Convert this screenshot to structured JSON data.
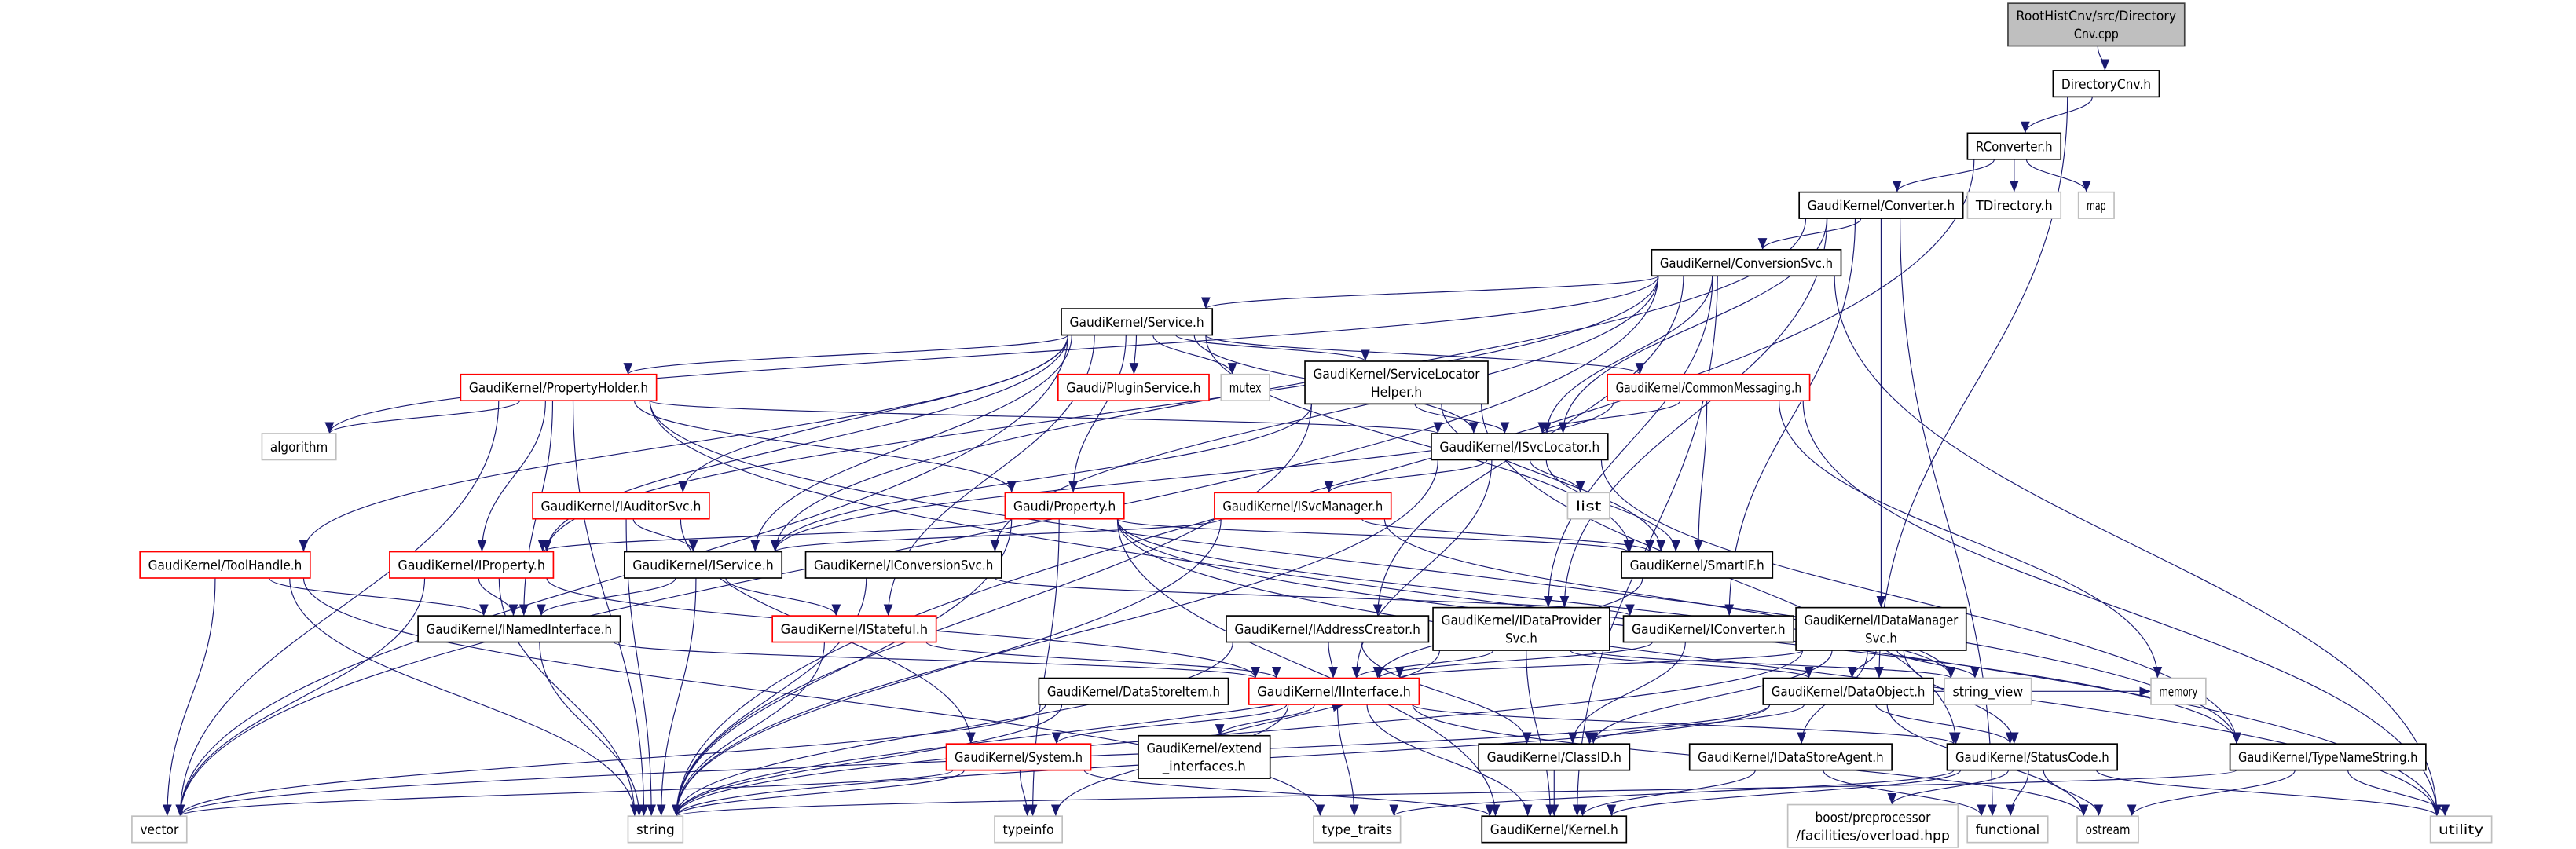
{
  "colors": {
    "edge": "#191970",
    "root_fill": "#bfbfbf",
    "truncated_border": "#ff0000",
    "normal_border": "#000000",
    "external_border": "#bfbfbf"
  },
  "nodes": [
    {
      "id": "root",
      "lines": [
        "RootHistCnv/src/Directory",
        "Cnv.cpp"
      ],
      "kind": "root"
    },
    {
      "id": "dircnv",
      "lines": [
        "DirectoryCnv.h"
      ],
      "kind": "normal"
    },
    {
      "id": "rconv",
      "lines": [
        "RConverter.h"
      ],
      "kind": "normal"
    },
    {
      "id": "converter",
      "lines": [
        "GaudiKernel/Converter.h"
      ],
      "kind": "normal"
    },
    {
      "id": "tdirectory",
      "lines": [
        "TDirectory.h"
      ],
      "kind": "external"
    },
    {
      "id": "map",
      "lines": [
        "map"
      ],
      "kind": "external"
    },
    {
      "id": "convsvc",
      "lines": [
        "GaudiKernel/ConversionSvc.h"
      ],
      "kind": "normal"
    },
    {
      "id": "service",
      "lines": [
        "GaudiKernel/Service.h"
      ],
      "kind": "normal"
    },
    {
      "id": "propholder",
      "lines": [
        "GaudiKernel/PropertyHolder.h"
      ],
      "kind": "truncated"
    },
    {
      "id": "algorithm",
      "lines": [
        "algorithm"
      ],
      "kind": "external"
    },
    {
      "id": "pluginsvc",
      "lines": [
        "Gaudi/PluginService.h"
      ],
      "kind": "truncated"
    },
    {
      "id": "mutex",
      "lines": [
        "mutex"
      ],
      "kind": "external"
    },
    {
      "id": "slhelper",
      "lines": [
        "GaudiKernel/ServiceLocator",
        "Helper.h"
      ],
      "kind": "normal"
    },
    {
      "id": "commonmsg",
      "lines": [
        "GaudiKernel/CommonMessaging.h"
      ],
      "kind": "truncated"
    },
    {
      "id": "isvclocator",
      "lines": [
        "GaudiKernel/ISvcLocator.h"
      ],
      "kind": "normal"
    },
    {
      "id": "list",
      "lines": [
        "list"
      ],
      "kind": "external"
    },
    {
      "id": "iauditorsvc",
      "lines": [
        "GaudiKernel/IAuditorSvc.h"
      ],
      "kind": "truncated"
    },
    {
      "id": "property",
      "lines": [
        "Gaudi/Property.h"
      ],
      "kind": "truncated"
    },
    {
      "id": "isvcmanager",
      "lines": [
        "GaudiKernel/ISvcManager.h"
      ],
      "kind": "truncated"
    },
    {
      "id": "toolhandle",
      "lines": [
        "GaudiKernel/ToolHandle.h"
      ],
      "kind": "truncated"
    },
    {
      "id": "iproperty",
      "lines": [
        "GaudiKernel/IProperty.h"
      ],
      "kind": "truncated"
    },
    {
      "id": "iservice",
      "lines": [
        "GaudiKernel/IService.h"
      ],
      "kind": "normal"
    },
    {
      "id": "iconvsvc",
      "lines": [
        "GaudiKernel/IConversionSvc.h"
      ],
      "kind": "normal"
    },
    {
      "id": "smartif",
      "lines": [
        "GaudiKernel/SmartIF.h"
      ],
      "kind": "normal"
    },
    {
      "id": "inamed",
      "lines": [
        "GaudiKernel/INamedInterface.h"
      ],
      "kind": "normal"
    },
    {
      "id": "istateful",
      "lines": [
        "GaudiKernel/IStateful.h"
      ],
      "kind": "truncated"
    },
    {
      "id": "iaddrcreator",
      "lines": [
        "GaudiKernel/IAddressCreator.h"
      ],
      "kind": "normal"
    },
    {
      "id": "idataprov",
      "lines": [
        "GaudiKernel/IDataProvider",
        "Svc.h"
      ],
      "kind": "normal"
    },
    {
      "id": "iconverter",
      "lines": [
        "GaudiKernel/IConverter.h"
      ],
      "kind": "normal"
    },
    {
      "id": "idatamgr",
      "lines": [
        "GaudiKernel/IDataManager",
        "Svc.h"
      ],
      "kind": "normal"
    },
    {
      "id": "datastoreitem",
      "lines": [
        "GaudiKernel/DataStoreItem.h"
      ],
      "kind": "normal"
    },
    {
      "id": "iinterface",
      "lines": [
        "GaudiKernel/IInterface.h"
      ],
      "kind": "truncated"
    },
    {
      "id": "dataobject",
      "lines": [
        "GaudiKernel/DataObject.h"
      ],
      "kind": "normal"
    },
    {
      "id": "string_view",
      "lines": [
        "string_view"
      ],
      "kind": "external"
    },
    {
      "id": "memory",
      "lines": [
        "memory"
      ],
      "kind": "external"
    },
    {
      "id": "system",
      "lines": [
        "GaudiKernel/System.h"
      ],
      "kind": "truncated"
    },
    {
      "id": "extend",
      "lines": [
        "GaudiKernel/extend",
        "_interfaces.h"
      ],
      "kind": "normal"
    },
    {
      "id": "classid",
      "lines": [
        "GaudiKernel/ClassID.h"
      ],
      "kind": "normal"
    },
    {
      "id": "idatastoreagent",
      "lines": [
        "GaudiKernel/IDataStoreAgent.h"
      ],
      "kind": "normal"
    },
    {
      "id": "statuscode",
      "lines": [
        "GaudiKernel/StatusCode.h"
      ],
      "kind": "normal"
    },
    {
      "id": "typenamestring",
      "lines": [
        "GaudiKernel/TypeNameString.h"
      ],
      "kind": "normal"
    },
    {
      "id": "vector",
      "lines": [
        "vector"
      ],
      "kind": "external"
    },
    {
      "id": "string",
      "lines": [
        "string"
      ],
      "kind": "external"
    },
    {
      "id": "typeinfo",
      "lines": [
        "typeinfo"
      ],
      "kind": "external"
    },
    {
      "id": "type_traits",
      "lines": [
        "type_traits"
      ],
      "kind": "external"
    },
    {
      "id": "kernel",
      "lines": [
        "GaudiKernel/Kernel.h"
      ],
      "kind": "normal"
    },
    {
      "id": "boost",
      "lines": [
        "boost/preprocessor",
        "/facilities/overload.hpp"
      ],
      "kind": "external"
    },
    {
      "id": "functional",
      "lines": [
        "functional"
      ],
      "kind": "external"
    },
    {
      "id": "ostream",
      "lines": [
        "ostream"
      ],
      "kind": "external"
    },
    {
      "id": "utility",
      "lines": [
        "utility"
      ],
      "kind": "external"
    }
  ],
  "edges": [
    [
      "root",
      "dircnv"
    ],
    [
      "dircnv",
      "rconv"
    ],
    [
      "dircnv",
      "dataobject"
    ],
    [
      "rconv",
      "converter"
    ],
    [
      "rconv",
      "tdirectory"
    ],
    [
      "rconv",
      "map"
    ],
    [
      "rconv",
      "string"
    ],
    [
      "converter",
      "convsvc"
    ],
    [
      "converter",
      "iconverter"
    ],
    [
      "converter",
      "isvclocator"
    ],
    [
      "converter",
      "idatamgr"
    ],
    [
      "converter",
      "idataprov"
    ],
    [
      "converter",
      "iservice"
    ],
    [
      "converter",
      "functional"
    ],
    [
      "convsvc",
      "service"
    ],
    [
      "convsvc",
      "iconvsvc"
    ],
    [
      "convsvc",
      "iaddrcreator"
    ],
    [
      "convsvc",
      "idataprov"
    ],
    [
      "convsvc",
      "algorithm"
    ],
    [
      "convsvc",
      "vector"
    ],
    [
      "convsvc",
      "utility"
    ],
    [
      "convsvc",
      "iproperty"
    ],
    [
      "convsvc",
      "isvclocator"
    ],
    [
      "convsvc",
      "kernel"
    ],
    [
      "service",
      "propholder"
    ],
    [
      "service",
      "pluginsvc"
    ],
    [
      "service",
      "mutex"
    ],
    [
      "service",
      "slhelper"
    ],
    [
      "service",
      "commonmsg"
    ],
    [
      "service",
      "isvclocator"
    ],
    [
      "service",
      "property"
    ],
    [
      "service",
      "iauditorsvc"
    ],
    [
      "service",
      "toolhandle"
    ],
    [
      "service",
      "iservice"
    ],
    [
      "service",
      "istateful"
    ],
    [
      "service",
      "smartif"
    ],
    [
      "service",
      "vector"
    ],
    [
      "service",
      "iproperty"
    ],
    [
      "propholder",
      "algorithm"
    ],
    [
      "propholder",
      "iproperty"
    ],
    [
      "propholder",
      "inamed"
    ],
    [
      "propholder",
      "property"
    ],
    [
      "propholder",
      "isvclocator"
    ],
    [
      "propholder",
      "string"
    ],
    [
      "propholder",
      "vector"
    ],
    [
      "propholder",
      "typenamestring"
    ],
    [
      "propholder",
      "utility"
    ],
    [
      "slhelper",
      "isvclocator"
    ],
    [
      "slhelper",
      "smartif"
    ],
    [
      "slhelper",
      "iservice"
    ],
    [
      "slhelper",
      "string"
    ],
    [
      "slhelper",
      "statuscode"
    ],
    [
      "commonmsg",
      "isvclocator"
    ],
    [
      "commonmsg",
      "smartif"
    ],
    [
      "commonmsg",
      "iservice"
    ],
    [
      "commonmsg",
      "memory"
    ],
    [
      "commonmsg",
      "utility"
    ],
    [
      "isvclocator",
      "list"
    ],
    [
      "isvclocator",
      "smartif"
    ],
    [
      "isvclocator",
      "isvcmanager"
    ],
    [
      "isvclocator",
      "iinterface"
    ],
    [
      "isvclocator",
      "string"
    ],
    [
      "isvclocator",
      "typenamestring"
    ],
    [
      "iauditorsvc",
      "iservice"
    ],
    [
      "iauditorsvc",
      "system"
    ],
    [
      "iauditorsvc",
      "string"
    ],
    [
      "property",
      "iproperty"
    ],
    [
      "property",
      "smartif"
    ],
    [
      "property",
      "string"
    ],
    [
      "property",
      "typeinfo"
    ],
    [
      "property",
      "kernel"
    ],
    [
      "property",
      "utility"
    ],
    [
      "property",
      "string_view"
    ],
    [
      "property",
      "typenamestring"
    ],
    [
      "isvcmanager",
      "iservice"
    ],
    [
      "isvcmanager",
      "smartif"
    ],
    [
      "isvcmanager",
      "string"
    ],
    [
      "isvcmanager",
      "string_view"
    ],
    [
      "toolhandle",
      "inamed"
    ],
    [
      "toolhandle",
      "vector"
    ],
    [
      "toolhandle",
      "string"
    ],
    [
      "toolhandle",
      "type_traits"
    ],
    [
      "iproperty",
      "inamed"
    ],
    [
      "iproperty",
      "iinterface"
    ],
    [
      "iproperty",
      "vector"
    ],
    [
      "iproperty",
      "string"
    ],
    [
      "iservice",
      "inamed"
    ],
    [
      "iservice",
      "istateful"
    ],
    [
      "iservice",
      "string"
    ],
    [
      "iconvsvc",
      "iconverter"
    ],
    [
      "iconvsvc",
      "string"
    ],
    [
      "smartif",
      "iinterface"
    ],
    [
      "inamed",
      "iinterface"
    ],
    [
      "inamed",
      "string"
    ],
    [
      "istateful",
      "iinterface"
    ],
    [
      "istateful",
      "string"
    ],
    [
      "iaddrcreator",
      "iinterface"
    ],
    [
      "iaddrcreator",
      "classid"
    ],
    [
      "iaddrcreator",
      "string"
    ],
    [
      "idataprov",
      "iinterface"
    ],
    [
      "idataprov",
      "dataobject"
    ],
    [
      "idataprov",
      "string"
    ],
    [
      "idataprov",
      "string_view"
    ],
    [
      "idataprov",
      "kernel"
    ],
    [
      "iconverter",
      "iinterface"
    ],
    [
      "iconverter",
      "classid"
    ],
    [
      "idatamgr",
      "iinterface"
    ],
    [
      "idatamgr",
      "dataobject"
    ],
    [
      "idatamgr",
      "classid"
    ],
    [
      "idatamgr",
      "idatastoreagent"
    ],
    [
      "idatamgr",
      "string_view"
    ],
    [
      "idatamgr",
      "string"
    ],
    [
      "idatamgr",
      "statuscode"
    ],
    [
      "datastoreitem",
      "string"
    ],
    [
      "datastoreitem",
      "vector"
    ],
    [
      "iinterface",
      "system"
    ],
    [
      "iinterface",
      "extend"
    ],
    [
      "iinterface",
      "kernel"
    ],
    [
      "iinterface",
      "statuscode"
    ],
    [
      "iinterface",
      "typeinfo"
    ],
    [
      "iinterface",
      "type_traits"
    ],
    [
      "iinterface",
      "ostream"
    ],
    [
      "extend",
      "iinterface"
    ],
    [
      "dataobject",
      "classid"
    ],
    [
      "dataobject",
      "statuscode"
    ],
    [
      "dataobject",
      "memory"
    ],
    [
      "dataobject",
      "string"
    ],
    [
      "dataobject",
      "ostream"
    ],
    [
      "dataobject",
      "vector"
    ],
    [
      "system",
      "typeinfo"
    ],
    [
      "system",
      "vector"
    ],
    [
      "system",
      "string"
    ],
    [
      "system",
      "kernel"
    ],
    [
      "classid",
      "kernel"
    ],
    [
      "idatastoreagent",
      "kernel"
    ],
    [
      "idatastoreagent",
      "functional"
    ],
    [
      "statuscode",
      "boost"
    ],
    [
      "statuscode",
      "functional"
    ],
    [
      "statuscode",
      "ostream"
    ],
    [
      "statuscode",
      "utility"
    ],
    [
      "statuscode",
      "kernel"
    ],
    [
      "statuscode",
      "type_traits"
    ],
    [
      "typenamestring",
      "ostream"
    ],
    [
      "typenamestring",
      "utility"
    ],
    [
      "typenamestring",
      "string"
    ]
  ]
}
